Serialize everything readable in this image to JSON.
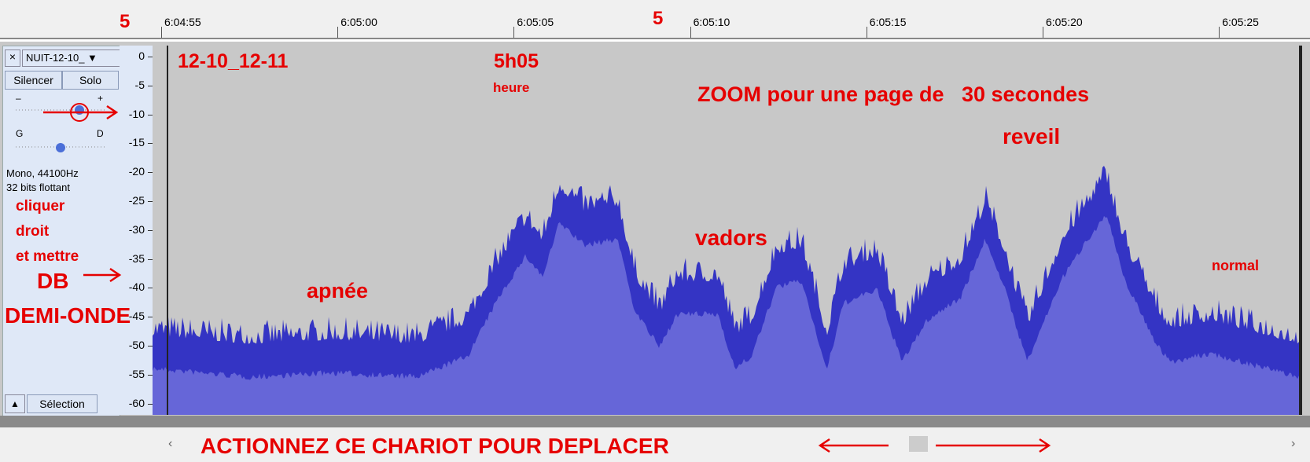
{
  "ruler": {
    "markers": [
      "5",
      "5"
    ],
    "time_labels": [
      "6:04:55",
      "6:05:00",
      "6:05:05",
      "6:05:10",
      "6:05:15",
      "6:05:20",
      "6:05:25"
    ]
  },
  "track": {
    "name": "NUIT-12-10_",
    "buttons": [
      "Silencer",
      "Solo"
    ],
    "gain_minus": "–",
    "gain_plus": "+",
    "pan_left": "G",
    "pan_right": "D",
    "format": [
      "Mono, 44100Hz",
      "32 bits flottant"
    ],
    "select_button": "Sélection"
  },
  "y_axis": {
    "ticks": [
      "0",
      "-5",
      "-10",
      "-15",
      "-20",
      "-25",
      "-30",
      "-35",
      "-40",
      "-45",
      "-50",
      "-55",
      "-60"
    ]
  },
  "annotations": {
    "date": "12-10_12-11",
    "time": "5h05",
    "time_unit": "heure",
    "zoom": "ZOOM pour une page de   30 secondes",
    "reveil": "reveil",
    "vadors": "vadors",
    "apnee": "apnée",
    "normal": "normal",
    "instructions": [
      "cliquer",
      "droit",
      "et mettre"
    ],
    "db": "DB",
    "demi_onde": "DEMI-ONDE",
    "scroll": "ACTIONNEZ CE CHARIOT POUR DEPLACER"
  }
}
